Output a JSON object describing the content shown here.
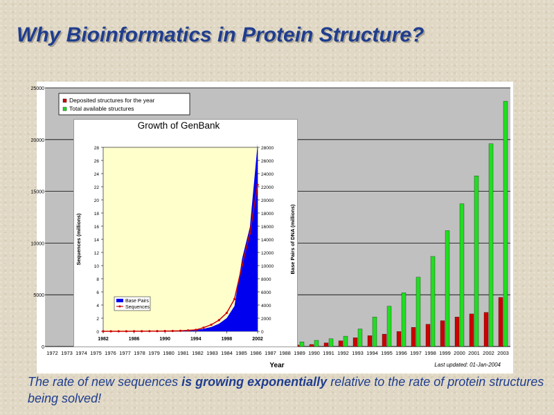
{
  "slide": {
    "title": "Why Bioinformatics in Protein Structure?",
    "caption_pre": "The rate of new sequences ",
    "caption_bold": "is growing exponentially",
    "caption_post": " relative to the rate of protein structures being solved!"
  },
  "colors": {
    "title": "#1f3d8f",
    "deposited": "#cc0000",
    "total": "#22dd22",
    "plot_bg": "#c0c0c0",
    "inset_plot_bg": "#ffffcc",
    "base_pairs": "#0000ee",
    "sequences": "#cc0000"
  },
  "chart_data": [
    {
      "type": "bar",
      "title": "",
      "xlabel": "Year",
      "ylabel": "",
      "ylim": [
        0,
        25000
      ],
      "yticks": [
        0,
        5000,
        10000,
        15000,
        20000,
        25000
      ],
      "legend_position": "top-left",
      "note": "Last updated: 01-Jan-2004",
      "categories": [
        "1972",
        "1973",
        "1974",
        "1975",
        "1976",
        "1977",
        "1978",
        "1979",
        "1980",
        "1981",
        "1982",
        "1983",
        "1984",
        "1985",
        "1986",
        "1987",
        "1988",
        "1989",
        "1990",
        "1991",
        "1992",
        "1993",
        "1994",
        "1995",
        "1996",
        "1997",
        "1998",
        "1999",
        "2000",
        "2001",
        "2002",
        "2003"
      ],
      "series": [
        {
          "name": "Deposited structures for the year",
          "values": [
            1,
            1,
            1,
            1,
            1,
            2,
            3,
            4,
            5,
            8,
            10,
            20,
            25,
            30,
            40,
            60,
            80,
            150,
            200,
            350,
            550,
            850,
            1050,
            1200,
            1450,
            1850,
            2150,
            2500,
            2850,
            3150,
            3300,
            4750
          ]
        },
        {
          "name": "Total available structures",
          "values": [
            10,
            12,
            13,
            14,
            15,
            17,
            20,
            24,
            30,
            38,
            48,
            68,
            93,
            123,
            163,
            223,
            300,
            450,
            600,
            750,
            1000,
            1700,
            2850,
            3900,
            5200,
            6700,
            8700,
            11200,
            13800,
            16500,
            19600,
            23700
          ]
        }
      ]
    },
    {
      "type": "area",
      "title": "Growth of GenBank",
      "xlabel": "",
      "ylabel": "Sequences (millions)",
      "y2label": "Base Pairs of DNA (millions)",
      "ylim": [
        0,
        28
      ],
      "yticks": [
        0,
        2,
        4,
        6,
        8,
        10,
        12,
        14,
        16,
        18,
        20,
        22,
        24,
        26,
        28
      ],
      "y2lim": [
        0,
        28000
      ],
      "y2ticks": [
        0,
        2000,
        4000,
        6000,
        8000,
        10000,
        12000,
        14000,
        16000,
        18000,
        20000,
        22000,
        24000,
        26000,
        28000
      ],
      "x_ticks": [
        "1982",
        "1986",
        "1990",
        "1994",
        "1998",
        "2002"
      ],
      "legend_position": "bottom-left",
      "x": [
        1982,
        1983,
        1984,
        1985,
        1986,
        1987,
        1988,
        1989,
        1990,
        1991,
        1992,
        1993,
        1994,
        1995,
        1996,
        1997,
        1998,
        1999,
        2000,
        2001,
        2002
      ],
      "series": [
        {
          "name": "Base Pairs",
          "values": [
            1,
            2,
            4,
            6,
            10,
            15,
            24,
            35,
            49,
            72,
            101,
            157,
            217,
            384,
            652,
            1160,
            2009,
            3841,
            11101,
            15849,
            28507
          ]
        },
        {
          "name": "Sequences",
          "values": [
            0.001,
            0.002,
            0.004,
            0.006,
            0.01,
            0.015,
            0.02,
            0.03,
            0.04,
            0.055,
            0.08,
            0.14,
            0.22,
            0.56,
            1.0,
            1.7,
            2.8,
            4.9,
            10.1,
            14.9,
            22.3
          ]
        }
      ]
    }
  ]
}
